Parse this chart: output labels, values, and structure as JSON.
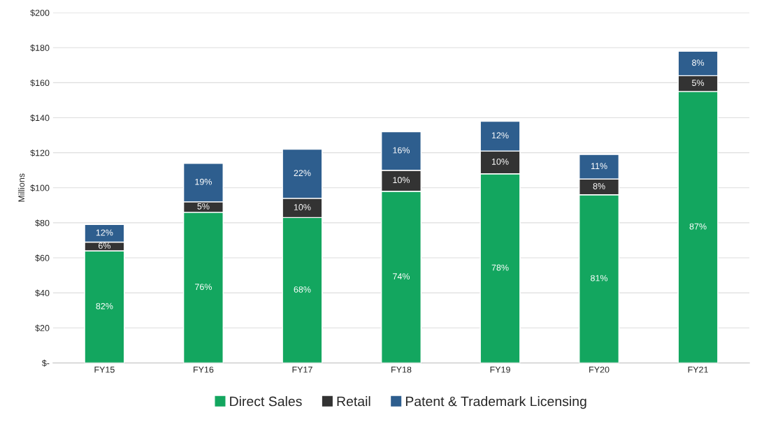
{
  "chart_data": {
    "type": "bar",
    "stacked": true,
    "ylabel": "Millions",
    "categories": [
      "FY15",
      "FY16",
      "FY17",
      "FY18",
      "FY19",
      "FY20",
      "FY21"
    ],
    "series": [
      {
        "name": "Direct Sales",
        "color": "#13a65f",
        "values": [
          64,
          86,
          83,
          98,
          108,
          96,
          155
        ]
      },
      {
        "name": "Retail",
        "color": "#333333",
        "values": [
          5,
          6,
          11,
          12,
          13,
          9,
          9
        ]
      },
      {
        "name": "Patent & Trademark Licensing",
        "color": "#2e5e8e",
        "values": [
          10,
          22,
          28,
          22,
          17,
          14,
          14
        ]
      }
    ],
    "annotations": [
      "82%",
      "6%",
      "12%",
      "76%",
      "5%",
      "19%",
      "68%",
      "10%",
      "22%",
      "74%",
      "10%",
      "16%",
      "78%",
      "10%",
      "12%",
      "81%",
      "8%",
      "11%",
      "87%",
      "5%",
      "8%"
    ],
    "ylim": [
      0,
      200
    ],
    "yticks": [
      {
        "value": 0,
        "label": "$-"
      },
      {
        "value": 20,
        "label": "$20"
      },
      {
        "value": 40,
        "label": "$40"
      },
      {
        "value": 60,
        "label": "$60"
      },
      {
        "value": 80,
        "label": "$80"
      },
      {
        "value": 100,
        "label": "$100"
      },
      {
        "value": 120,
        "label": "$120"
      },
      {
        "value": 140,
        "label": "$140"
      },
      {
        "value": 160,
        "label": "$160"
      },
      {
        "value": 180,
        "label": "$180"
      },
      {
        "value": 200,
        "label": "$200"
      }
    ],
    "grid": "y",
    "legend": "bottom"
  }
}
